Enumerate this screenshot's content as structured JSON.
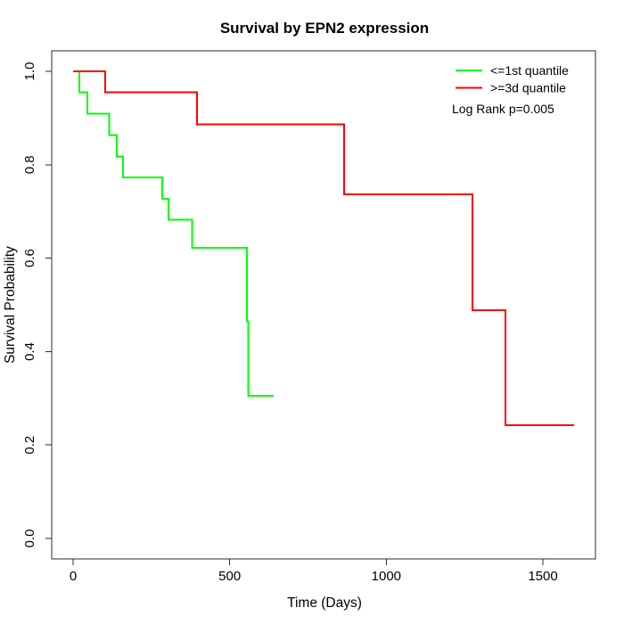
{
  "chart_data": {
    "type": "line",
    "subtype": "kaplan-meier-step",
    "title": "Survival by EPN2 expression",
    "xlabel": "Time (Days)",
    "ylabel": "Survival Probability",
    "xlim": [
      0,
      1600
    ],
    "ylim": [
      0.0,
      1.0
    ],
    "x_ticks": [
      0,
      500,
      1000,
      1500
    ],
    "y_ticks": [
      0.0,
      0.2,
      0.4,
      0.6,
      0.8,
      1.0
    ],
    "grid": false,
    "frame": true,
    "colors": {
      "group_low": "#00ff00",
      "group_high": "#ff0000",
      "axis": "#000000"
    },
    "legend": {
      "position": "top-right",
      "entries": [
        {
          "label": "<=1st quantile",
          "color": "#00ff00"
        },
        {
          "label": ">=3d quantile",
          "color": "#ff0000"
        }
      ],
      "note": "Log Rank p=0.005"
    },
    "series": [
      {
        "name": "<=1st quantile",
        "color": "#00ff00",
        "steps": [
          [
            0,
            1.0
          ],
          [
            20,
            0.955
          ],
          [
            45,
            0.909
          ],
          [
            115,
            0.864
          ],
          [
            140,
            0.818
          ],
          [
            160,
            0.773
          ],
          [
            285,
            0.727
          ],
          [
            305,
            0.682
          ],
          [
            380,
            0.622
          ],
          [
            555,
            0.465
          ],
          [
            560,
            0.305
          ]
        ],
        "end_time": 640
      },
      {
        "name": ">=3d quantile",
        "color": "#ff0000",
        "steps": [
          [
            0,
            1.0
          ],
          [
            102,
            0.955
          ],
          [
            395,
            0.886
          ],
          [
            865,
            0.737
          ],
          [
            1275,
            0.489
          ],
          [
            1380,
            0.242
          ]
        ],
        "end_time": 1600
      }
    ]
  }
}
